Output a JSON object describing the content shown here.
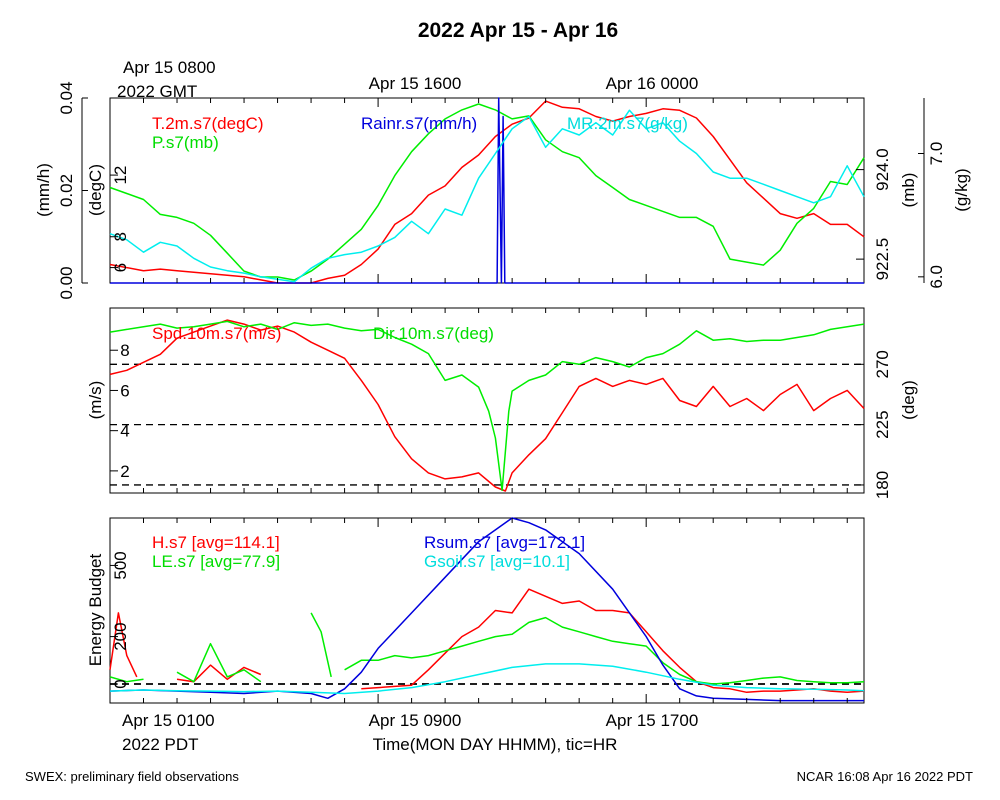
{
  "header": {
    "title": "2022 Apr 15 - Apr 16",
    "gmt_date": "Apr 15 0800",
    "gmt_tz": "2022 GMT",
    "gmt_ticks": [
      "Apr 15 1600",
      "Apr 16 0000"
    ]
  },
  "footer": {
    "left_note": "SWEX: preliminary field observations",
    "right_note": "NCAR 16:08 Apr 16 2022 PDT",
    "x_start_label": "Apr 15 0100",
    "x_tz_label": "2022 PDT",
    "x_mid_labels": [
      "Apr 15 0900",
      "Apr 15 1700"
    ],
    "x_title": "Time(MON DAY HHMM), tic=HR"
  },
  "colors": {
    "red": "#ff0000",
    "green": "#00ee00",
    "blue": "#0000dd",
    "cyan": "#00eeee",
    "black": "#000000"
  },
  "chart_data": [
    {
      "type": "line",
      "x_unit": "hours since Apr 15 0100 PDT",
      "xlim": [
        0,
        22.5
      ],
      "legend": [
        {
          "name": "T.2m.s7(degC)",
          "color": "red"
        },
        {
          "name": "P.s7(mb)",
          "color": "green"
        },
        {
          "name": "Rainr.s7(mm/h)",
          "color": "blue"
        },
        {
          "name": "MR.2m.s7(g/kg)",
          "color": "cyan"
        }
      ],
      "axes": {
        "rain": {
          "label": "(mm/h)",
          "lim": [
            0,
            0.04
          ],
          "ticks": [
            "0.00",
            "0.02",
            "0.04"
          ]
        },
        "temp": {
          "label": "(degC)",
          "lim": [
            5,
            17
          ],
          "ticks": [
            "6",
            "8",
            "12"
          ]
        },
        "pres": {
          "label": "(mb)",
          "lim": [
            922.1,
            925.2
          ],
          "ticks": [
            "922.5",
            "924.0"
          ]
        },
        "mr": {
          "label": "(g/kg)",
          "lim": [
            5.95,
            7.45
          ],
          "ticks": [
            "6.0",
            "7.0"
          ]
        }
      },
      "series": [
        {
          "name": "T.2m.s7(degC)",
          "color": "red",
          "axis": "temp",
          "x": [
            0,
            1,
            1.5,
            2,
            3,
            4,
            4.5,
            5,
            6,
            6.5,
            7,
            7.5,
            8,
            8.5,
            9,
            9.5,
            10,
            10.5,
            11,
            11.5,
            12,
            12.5,
            13,
            13.5,
            14,
            14.5,
            15,
            15.5,
            16,
            16.5,
            17,
            17.5,
            18,
            18.5,
            19,
            19.5,
            20,
            20.5,
            21,
            21.5,
            22,
            22.5
          ],
          "y": [
            6.2,
            5.8,
            5.9,
            5.8,
            5.6,
            5.4,
            5.2,
            5.0,
            5.0,
            5.3,
            5.5,
            6.2,
            7.2,
            8.8,
            9.5,
            10.7,
            11.3,
            12.5,
            13.3,
            14.5,
            15.3,
            15.7,
            16.8,
            16.4,
            16.3,
            15.8,
            15.5,
            15.8,
            16.0,
            16.3,
            16.2,
            15.7,
            14.5,
            13.0,
            11.5,
            10.5,
            9.5,
            9.2,
            9.5,
            8.8,
            8.8,
            8.0
          ]
        },
        {
          "name": "P.s7(mb)",
          "color": "green",
          "axis": "pres",
          "x": [
            0,
            0.5,
            1,
            1.5,
            2,
            2.5,
            3,
            3.5,
            4,
            4.5,
            5,
            5.5,
            6,
            6.5,
            7,
            7.5,
            8,
            8.5,
            9,
            9.5,
            10,
            10.5,
            11,
            11.5,
            12,
            12.5,
            13,
            13.5,
            14,
            14.5,
            15,
            15.5,
            16,
            16.5,
            17,
            17.5,
            18,
            18.5,
            19,
            19.5,
            20,
            20.5,
            21,
            21.5,
            22,
            22.5
          ],
          "y": [
            923.7,
            923.6,
            923.5,
            923.25,
            923.2,
            923.1,
            922.9,
            922.6,
            922.3,
            922.2,
            922.2,
            922.15,
            922.3,
            922.5,
            922.75,
            923.0,
            923.4,
            923.9,
            924.3,
            924.6,
            924.85,
            925.0,
            925.1,
            925.0,
            924.85,
            924.9,
            924.5,
            924.3,
            924.2,
            923.9,
            923.7,
            923.5,
            923.4,
            923.3,
            923.2,
            923.2,
            923.05,
            922.5,
            922.45,
            922.4,
            922.65,
            923.1,
            923.35,
            923.8,
            923.75,
            924.2
          ]
        },
        {
          "name": "Rainr.s7(mm/h)",
          "color": "blue",
          "axis": "rain",
          "x": [
            0,
            11.55,
            11.6,
            11.68,
            11.73,
            11.78,
            22.5
          ],
          "y": [
            0,
            0,
            0.04,
            0,
            0.036,
            0,
            0
          ]
        },
        {
          "name": "MR.2m.s7(g/kg)",
          "color": "cyan",
          "axis": "mr",
          "x": [
            0,
            0.5,
            1,
            1.5,
            2,
            2.5,
            3,
            3.5,
            4,
            4.5,
            5,
            5.5,
            6,
            6.5,
            7,
            7.5,
            8,
            8.5,
            9,
            9.5,
            10,
            10.5,
            11,
            11.5,
            12,
            12.5,
            13,
            13.5,
            14,
            14.5,
            15,
            15.5,
            16,
            16.5,
            17,
            17.5,
            18,
            18.5,
            19,
            19.5,
            20,
            20.5,
            21,
            21.5,
            22,
            22.5
          ],
          "y": [
            6.35,
            6.3,
            6.2,
            6.28,
            6.25,
            6.15,
            6.08,
            6.05,
            6.03,
            6.0,
            5.98,
            5.96,
            6.07,
            6.15,
            6.18,
            6.2,
            6.25,
            6.32,
            6.45,
            6.35,
            6.55,
            6.5,
            6.8,
            7.0,
            7.2,
            7.3,
            7.05,
            7.2,
            7.15,
            7.25,
            7.15,
            7.35,
            7.2,
            7.25,
            7.1,
            7.0,
            6.85,
            6.8,
            6.8,
            6.75,
            6.7,
            6.65,
            6.6,
            6.65,
            6.9,
            6.65
          ]
        }
      ]
    },
    {
      "type": "line",
      "x_unit": "hours since Apr 15 0100 PDT",
      "xlim": [
        0,
        22.5
      ],
      "legend": [
        {
          "name": "Spd.10m.s7(m/s)",
          "color": "red"
        },
        {
          "name": "Dir.10m.s7(deg)",
          "color": "green"
        }
      ],
      "axes": {
        "speed": {
          "label": "(m/s)",
          "lim": [
            0.9,
            10.1
          ],
          "ticks": [
            "2",
            "4",
            "6",
            "8"
          ]
        },
        "dir": {
          "label": "(deg)",
          "lim": [
            174,
            312
          ],
          "ticks": [
            "180",
            "225",
            "270"
          ]
        }
      },
      "reference_lines_deg": [
        180,
        225,
        270
      ],
      "series": [
        {
          "name": "Spd.10m.s7(m/s)",
          "color": "red",
          "axis": "speed",
          "x": [
            0,
            0.5,
            1,
            1.5,
            2,
            2.5,
            3,
            3.5,
            4,
            4.5,
            5,
            5.5,
            6,
            6.5,
            7,
            7.5,
            8,
            8.5,
            9,
            9.5,
            10,
            10.5,
            11,
            11.5,
            11.8,
            12,
            12.5,
            13,
            13.5,
            14,
            14.5,
            15,
            15.5,
            16,
            16.5,
            17,
            17.5,
            18,
            18.5,
            19,
            19.5,
            20,
            20.5,
            21,
            21.5,
            22,
            22.5
          ],
          "y": [
            6.8,
            7.0,
            7.4,
            7.8,
            8.6,
            8.9,
            9.2,
            9.5,
            9.3,
            9.0,
            9.2,
            8.9,
            8.4,
            8.0,
            7.6,
            6.5,
            5.3,
            3.7,
            2.6,
            1.9,
            1.6,
            1.7,
            1.9,
            1.2,
            1.0,
            1.9,
            2.8,
            3.6,
            4.9,
            6.2,
            6.6,
            6.2,
            6.5,
            6.3,
            6.6,
            5.5,
            5.2,
            6.2,
            5.2,
            5.6,
            5.0,
            5.8,
            6.3,
            5.0,
            5.6,
            6.0,
            5.1
          ]
        },
        {
          "name": "Dir.10m.s7(deg)",
          "color": "green",
          "axis": "dir",
          "x": [
            0,
            0.5,
            1,
            1.5,
            2,
            2.5,
            3,
            3.5,
            4,
            4.5,
            5,
            5.5,
            6,
            6.5,
            7,
            7.5,
            8,
            8.5,
            9,
            9.5,
            10,
            10.5,
            11,
            11.3,
            11.5,
            11.7,
            11.9,
            12,
            12.5,
            13,
            13.5,
            14,
            14.5,
            15,
            15.5,
            16,
            16.5,
            17,
            17.5,
            18,
            18.5,
            19,
            19.5,
            20,
            20.5,
            21,
            21.5,
            22,
            22.5
          ],
          "y": [
            294,
            296,
            298,
            300,
            297,
            298,
            300,
            302,
            298,
            300,
            296,
            301,
            299,
            300,
            297,
            295,
            296,
            290,
            285,
            278,
            258,
            262,
            253,
            235,
            215,
            176,
            235,
            250,
            258,
            262,
            272,
            270,
            275,
            272,
            268,
            275,
            278,
            285,
            295,
            288,
            289,
            287,
            288,
            288,
            290,
            292,
            296,
            298,
            300
          ]
        }
      ]
    },
    {
      "type": "line",
      "x_unit": "hours since Apr 15 0100 PDT",
      "xlim": [
        0,
        22.5
      ],
      "ylabel": "Energy Budget",
      "ylim": [
        -80,
        700
      ],
      "yticks": [
        "0",
        "200",
        "500"
      ],
      "reference_lines": [
        0
      ],
      "legend": [
        {
          "name": "H.s7 [avg=114.1]",
          "color": "red"
        },
        {
          "name": "LE.s7 [avg=77.9]",
          "color": "green"
        },
        {
          "name": "Rsum.s7 [avg=172.1]",
          "color": "blue"
        },
        {
          "name": "Gsoil.s7 [avg=10.1]",
          "color": "cyan"
        }
      ],
      "series": [
        {
          "name": "H.s7 [avg=114.1]",
          "color": "red",
          "segments": [
            {
              "x": [
                0,
                0.25,
                0.5,
                0.8
              ],
              "y": [
                60,
                300,
                120,
                30
              ]
            },
            {
              "x": [
                2,
                2.5,
                3,
                3.5,
                4,
                4.5
              ],
              "y": [
                20,
                10,
                80,
                20,
                70,
                40
              ]
            },
            {
              "x": [
                7.5,
                8,
                8.5,
                9,
                9.5,
                10,
                10.5,
                11,
                11.5,
                12,
                12.5,
                13,
                13.5,
                14,
                14.5,
                15,
                15.5,
                16,
                16.5,
                17,
                17.5,
                18,
                18.5,
                19,
                19.5,
                20,
                20.5,
                21,
                21.5,
                22,
                22.5
              ],
              "y": [
                -20,
                -15,
                -10,
                -5,
                60,
                130,
                200,
                240,
                310,
                300,
                400,
                370,
                340,
                350,
                310,
                310,
                300,
                220,
                140,
                70,
                10,
                -15,
                -20,
                -35,
                -30,
                -30,
                -25,
                -20,
                -30,
                -35,
                -30
              ]
            }
          ]
        },
        {
          "name": "LE.s7 [avg=77.9]",
          "color": "green",
          "segments": [
            {
              "x": [
                0,
                0.5,
                1
              ],
              "y": [
                30,
                10,
                20
              ]
            },
            {
              "x": [
                2,
                2.5,
                3,
                3.5,
                4,
                4.5
              ],
              "y": [
                50,
                10,
                170,
                30,
                60,
                10
              ]
            },
            {
              "x": [
                6,
                6.3,
                6.6
              ],
              "y": [
                300,
                220,
                30
              ]
            },
            {
              "x": [
                7,
                7.5,
                8,
                8.5,
                9,
                9.5,
                10,
                10.5,
                11,
                11.5,
                12,
                12.5,
                13,
                13.5,
                14,
                14.5,
                15,
                15.5,
                16,
                16.5,
                17,
                17.5,
                18,
                18.5,
                19,
                19.5,
                20,
                20.5,
                21,
                21.5,
                22,
                22.5
              ],
              "y": [
                60,
                100,
                100,
                120,
                110,
                120,
                140,
                160,
                180,
                200,
                210,
                260,
                280,
                240,
                220,
                200,
                180,
                170,
                160,
                90,
                40,
                10,
                0,
                5,
                15,
                25,
                30,
                15,
                10,
                5,
                5,
                10
              ]
            }
          ]
        },
        {
          "name": "Rsum.s7 [avg=172.1]",
          "color": "blue",
          "segments": [
            {
              "x": [
                0,
                1,
                2,
                3,
                4,
                5,
                6,
                6.5,
                7,
                7.5,
                8,
                9,
                10,
                11,
                11.5,
                12,
                12.5,
                13,
                14,
                15,
                16,
                16.5,
                17,
                17.5,
                18,
                19,
                20,
                21,
                22,
                22.5
              ],
              "y": [
                -30,
                -25,
                -30,
                -35,
                -40,
                -30,
                -40,
                -60,
                -20,
                50,
                150,
                300,
                450,
                600,
                650,
                700,
                680,
                650,
                550,
                400,
                200,
                80,
                -20,
                -50,
                -60,
                -65,
                -70,
                -70,
                -70,
                -70
              ]
            }
          ]
        },
        {
          "name": "Gsoil.s7 [avg=10.1]",
          "color": "cyan",
          "segments": [
            {
              "x": [
                0,
                1,
                2,
                3,
                4,
                5,
                6,
                7,
                8,
                9,
                10,
                11,
                12,
                13,
                14,
                15,
                16,
                17,
                18,
                19,
                20,
                21,
                22,
                22.5
              ],
              "y": [
                -30,
                -25,
                -28,
                -30,
                -32,
                -30,
                -35,
                -40,
                -30,
                -15,
                10,
                40,
                70,
                85,
                85,
                75,
                50,
                20,
                -5,
                -15,
                -20,
                -22,
                -25,
                -28
              ]
            }
          ]
        }
      ]
    }
  ]
}
